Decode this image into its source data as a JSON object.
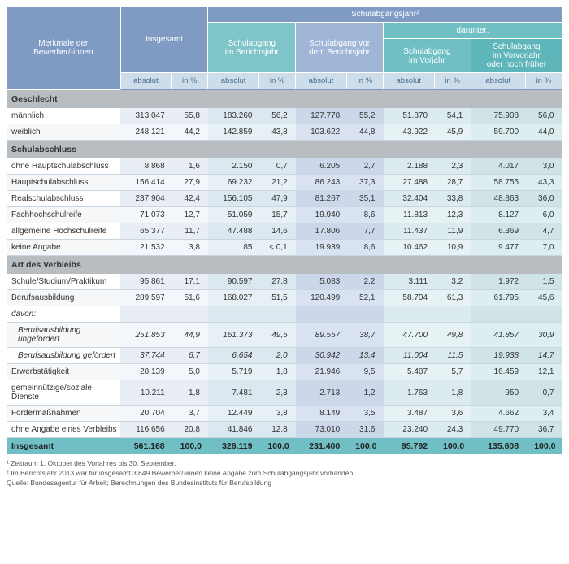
{
  "header": {
    "row_header": "Merkmale der\nBewerber/-innen",
    "groups": {
      "insgesamt": "Insgesamt",
      "schulabgangsjahr": "Schulabgangsjahr²",
      "darunter": "darunter:",
      "im_berichtsjahr": "Schulabgang\nim Berichtsjahr",
      "vor_berichtsjahr": "Schulabgang vor\ndem Berichtsjahr",
      "im_vorjahr": "Schulabgang\nim Vorjahr",
      "vorvorjahr": "Schulabgang\nim Vorvorjahr\noder noch früher"
    },
    "units": {
      "absolut": "absolut",
      "pct": "in %"
    }
  },
  "sections": {
    "geschlecht": "Geschlecht",
    "schulabschluss": "Schulabschluss",
    "verbleib": "Art des Verbleibs",
    "insgesamt": "Insgesamt"
  },
  "rows": {
    "maennlich": {
      "label": "männlich",
      "v": [
        "313.047",
        "55,8",
        "183.260",
        "56,2",
        "127.778",
        "55,2",
        "51.870",
        "54,1",
        "75.908",
        "56,0"
      ]
    },
    "weiblich": {
      "label": "weiblich",
      "v": [
        "248.121",
        "44,2",
        "142.859",
        "43,8",
        "103.622",
        "44,8",
        "43.922",
        "45,9",
        "59.700",
        "44,0"
      ]
    },
    "ohne_hs": {
      "label": "ohne Hauptschulabschluss",
      "v": [
        "8.868",
        "1,6",
        "2.150",
        "0,7",
        "6.205",
        "2,7",
        "2.188",
        "2,3",
        "4.017",
        "3,0"
      ]
    },
    "hs": {
      "label": "Hauptschulabschluss",
      "v": [
        "156.414",
        "27,9",
        "69.232",
        "21,2",
        "86.243",
        "37,3",
        "27.488",
        "28,7",
        "58.755",
        "43,3"
      ]
    },
    "rs": {
      "label": "Realschulabschluss",
      "v": [
        "237.904",
        "42,4",
        "156.105",
        "47,9",
        "81.267",
        "35,1",
        "32.404",
        "33,8",
        "48.863",
        "36,0"
      ]
    },
    "fhr": {
      "label": "Fachhochschulreife",
      "v": [
        "71.073",
        "12,7",
        "51.059",
        "15,7",
        "19.940",
        "8,6",
        "11.813",
        "12,3",
        "8.127",
        "6,0"
      ]
    },
    "ahr": {
      "label": "allgemeine Hochschulreife",
      "v": [
        "65.377",
        "11,7",
        "47.488",
        "14,6",
        "17.806",
        "7,7",
        "11.437",
        "11,9",
        "6.369",
        "4,7"
      ]
    },
    "keine": {
      "label": "keine Angabe",
      "v": [
        "21.532",
        "3,8",
        "85",
        "< 0,1",
        "19.939",
        "8,6",
        "10.462",
        "10,9",
        "9.477",
        "7,0"
      ]
    },
    "schule": {
      "label": "Schule/Studium/Praktikum",
      "v": [
        "95.861",
        "17,1",
        "90.597",
        "27,8",
        "5.083",
        "2,2",
        "3.111",
        "3,2",
        "1.972",
        "1,5"
      ]
    },
    "berufsausb": {
      "label": "Berufsausbildung",
      "v": [
        "289.597",
        "51,6",
        "168.027",
        "51,5",
        "120.499",
        "52,1",
        "58.704",
        "61,3",
        "61.795",
        "45,6"
      ]
    },
    "davon": {
      "label": "davon:"
    },
    "ungef": {
      "label": "Berufsausbildung ungefördert",
      "v": [
        "251.853",
        "44,9",
        "161.373",
        "49,5",
        "89.557",
        "38,7",
        "47.700",
        "49,8",
        "41.857",
        "30,9"
      ]
    },
    "gef": {
      "label": "Berufsausbildung gefördert",
      "v": [
        "37.744",
        "6,7",
        "6.654",
        "2,0",
        "30.942",
        "13,4",
        "11.004",
        "11,5",
        "19.938",
        "14,7"
      ]
    },
    "erwerb": {
      "label": "Erwerbstätigkeit",
      "v": [
        "28.139",
        "5,0",
        "5.719",
        "1,8",
        "21.946",
        "9,5",
        "5.487",
        "5,7",
        "16.459",
        "12,1"
      ]
    },
    "gemein": {
      "label": "gemeinnützige/soziale Dienste",
      "v": [
        "10.211",
        "1,8",
        "7.481",
        "2,3",
        "2.713",
        "1,2",
        "1.763",
        "1,8",
        "950",
        "0,7"
      ]
    },
    "foerder": {
      "label": "Fördermaßnahmen",
      "v": [
        "20.704",
        "3,7",
        "12.449",
        "3,8",
        "8.149",
        "3,5",
        "3.487",
        "3,6",
        "4.662",
        "3,4"
      ]
    },
    "ohneverb": {
      "label": "ohne Angabe eines Verbleibs",
      "v": [
        "116.656",
        "20,8",
        "41.846",
        "12,8",
        "73.010",
        "31,6",
        "23.240",
        "24,3",
        "49.770",
        "36,7"
      ]
    },
    "total": {
      "label": "Insgesamt",
      "v": [
        "561.168",
        "100,0",
        "326.119",
        "100,0",
        "231.400",
        "100,0",
        "95.792",
        "100,0",
        "135.608",
        "100,0"
      ]
    }
  },
  "footnotes": {
    "f1": "¹ Zeitraum 1. Oktober des Vorjahres bis 30. September.",
    "f2": "² Im Berichtsjahr 2013 war für insgesamt 3.649 Bewerber/-innen keine Angabe zum Schulabgangsjahr vorhanden.",
    "src": "Quelle: Bundesagentur für Arbeit; Berechnungen des Bundesinstituts für Berufsbildung"
  },
  "colors": {
    "header_main": "#7f9bc4",
    "col_group_2": "#7fc4c9",
    "col_group_3": "#9fb6d6",
    "col_group_4": "#6fbfc4",
    "col_group_5": "#5eb5ba",
    "section_bg": "#b7bdc1",
    "total_bg": "#6fbfc4"
  }
}
